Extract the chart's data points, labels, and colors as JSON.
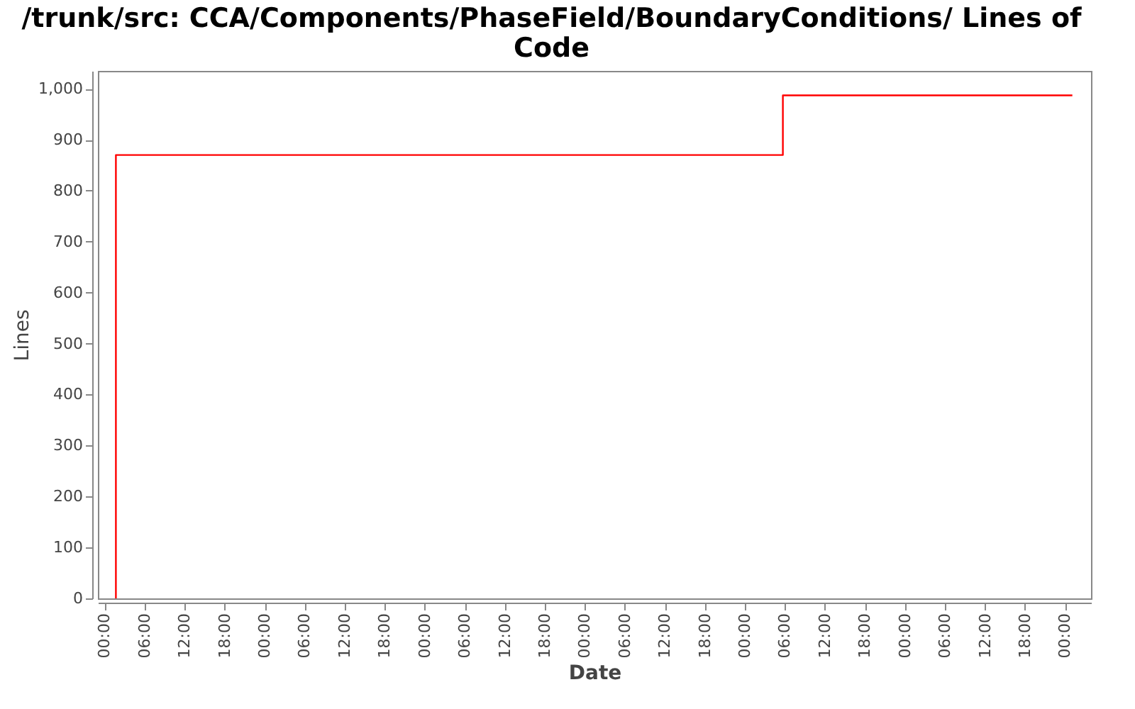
{
  "chart_data": {
    "type": "step",
    "title": "/trunk/src: CCA/Components/PhaseField/BoundaryConditions/ Lines of Code",
    "xlabel": "Date",
    "ylabel": "Lines",
    "x": [
      "2000-01-01T01:42",
      "2000-01-01T01:42",
      "2000-01-05T05:42",
      "2000-01-07T01:06"
    ],
    "series": [
      {
        "color": "#ff0000",
        "values": [
          0,
          870,
          987,
          987
        ]
      }
    ],
    "xlim": [
      "1999-12-31T23:00",
      "2000-01-07T03:54"
    ],
    "xticks": [
      {
        "value": "2000-01-01T00:00",
        "label": "00:00"
      },
      {
        "value": "2000-01-01T06:00",
        "label": "06:00"
      },
      {
        "value": "2000-01-01T12:00",
        "label": "12:00"
      },
      {
        "value": "2000-01-01T18:00",
        "label": "18:00"
      },
      {
        "value": "2000-01-02T00:00",
        "label": "00:00"
      },
      {
        "value": "2000-01-02T06:00",
        "label": "06:00"
      },
      {
        "value": "2000-01-02T12:00",
        "label": "12:00"
      },
      {
        "value": "2000-01-02T18:00",
        "label": "18:00"
      },
      {
        "value": "2000-01-03T00:00",
        "label": "00:00"
      },
      {
        "value": "2000-01-03T06:00",
        "label": "06:00"
      },
      {
        "value": "2000-01-03T12:00",
        "label": "12:00"
      },
      {
        "value": "2000-01-03T18:00",
        "label": "18:00"
      },
      {
        "value": "2000-01-04T00:00",
        "label": "00:00"
      },
      {
        "value": "2000-01-04T06:00",
        "label": "06:00"
      },
      {
        "value": "2000-01-04T12:00",
        "label": "12:00"
      },
      {
        "value": "2000-01-04T18:00",
        "label": "18:00"
      },
      {
        "value": "2000-01-05T00:00",
        "label": "00:00"
      },
      {
        "value": "2000-01-05T06:00",
        "label": "06:00"
      },
      {
        "value": "2000-01-05T12:00",
        "label": "12:00"
      },
      {
        "value": "2000-01-05T18:00",
        "label": "18:00"
      },
      {
        "value": "2000-01-06T00:00",
        "label": "00:00"
      },
      {
        "value": "2000-01-06T06:00",
        "label": "06:00"
      },
      {
        "value": "2000-01-06T12:00",
        "label": "12:00"
      },
      {
        "value": "2000-01-06T18:00",
        "label": "18:00"
      },
      {
        "value": "2000-01-07T00:00",
        "label": "00:00"
      }
    ],
    "ylim": [
      0,
      1035
    ],
    "yticks": [
      0,
      100,
      200,
      300,
      400,
      500,
      600,
      700,
      800,
      900,
      {
        "value": 1000,
        "label": "1,000"
      }
    ],
    "grid": false,
    "marker": "none",
    "line_style": "solid"
  }
}
